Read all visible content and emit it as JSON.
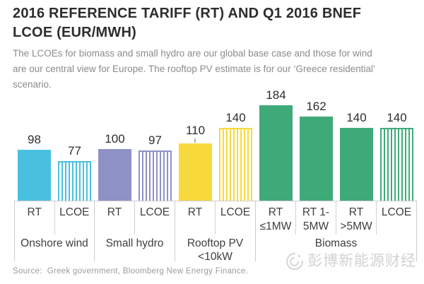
{
  "header": {
    "title": "2016 REFERENCE TARIFF (RT) AND Q1 2016 BNEF\nLCOE (EUR/MWH)",
    "subtitle": "The LCOEs for biomass and small hydro are our global base case and those for wind\nare our central view for Europe. The rooftop PV estimate is for our ‘Greece residential’\nscenario."
  },
  "footer": {
    "source": "Source:  Greek government, Bloomberg New Energy Finance.",
    "watermark": "彭博新能源财经"
  },
  "chart_data": {
    "type": "bar",
    "title": "2016 Reference Tariff (RT) and Q1 2016 BNEF LCOE",
    "ylabel": "EUR/MWh",
    "ylim": [
      0,
      190
    ],
    "grid": false,
    "legend_position": "none",
    "value_labels_shown": true,
    "groups": [
      {
        "label": "Onshore wind",
        "color": "#4AC0E0",
        "bars": [
          {
            "label": "RT",
            "value": 98,
            "pattern": "solid"
          },
          {
            "label": "LCOE",
            "value": 77,
            "pattern": "striped"
          }
        ]
      },
      {
        "label": "Small hydro",
        "color": "#8E92C6",
        "bars": [
          {
            "label": "RT",
            "value": 100,
            "pattern": "solid"
          },
          {
            "label": "LCOE",
            "value": 97,
            "pattern": "striped"
          }
        ]
      },
      {
        "label": "Rooftop PV\n<10kW",
        "color": "#F8D93C",
        "bars": [
          {
            "label": "RT",
            "value": 110,
            "pattern": "solid",
            "tick": true
          },
          {
            "label": "LCOE",
            "value": 140,
            "pattern": "striped"
          }
        ]
      },
      {
        "label": "Biomass",
        "color": "#3FAA79",
        "bars": [
          {
            "label": "RT\n≤1MW",
            "value": 184,
            "pattern": "solid"
          },
          {
            "label": "RT 1-\n5MW",
            "value": 162,
            "pattern": "solid"
          },
          {
            "label": "RT\n>5MW",
            "value": 140,
            "pattern": "solid"
          },
          {
            "label": "LCOE",
            "value": 140,
            "pattern": "striped"
          }
        ]
      }
    ]
  }
}
